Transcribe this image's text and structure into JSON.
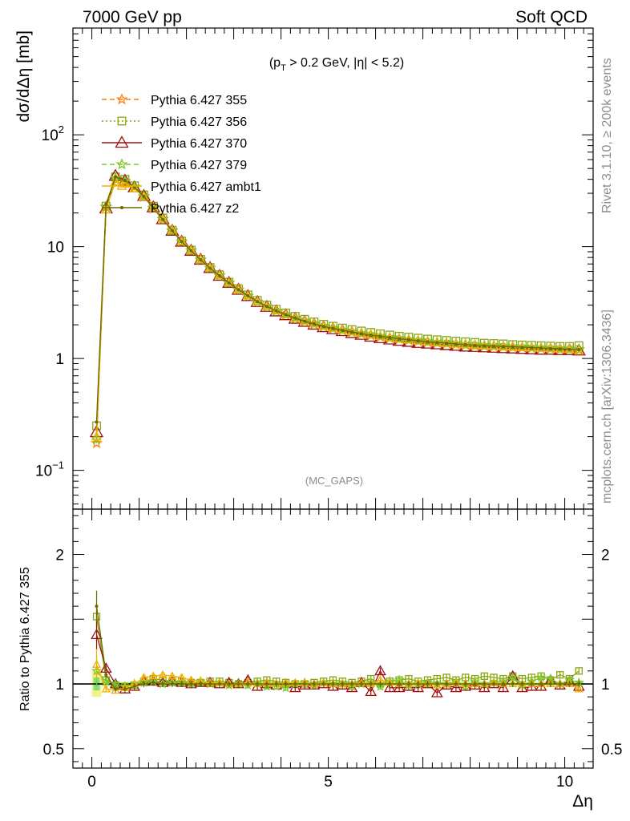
{
  "header": {
    "left": "7000 GeV pp",
    "right": "Soft QCD"
  },
  "side": {
    "rivet": "Rivet 3.1.10, ≥ 200k events",
    "mcplots": "mcplots.cern.ch [arXiv:1306.3436]"
  },
  "main": {
    "cut_label": "(p_T > 0.2 GeV, |η| < 5.2)",
    "watermark": "(MC_GAPS)",
    "ylabel": "dσ/dΔη [mb]"
  },
  "ratio": {
    "ylabel": "Ratio to Pythia 6.427 355"
  },
  "chart_data": [
    {
      "type": "line",
      "panel": "main",
      "xlabel": "Δη",
      "ylabel": "dσ/dΔη [mb]",
      "yscale": "log",
      "xlim": [
        -0.4,
        10.6
      ],
      "ylim": [
        0.045,
        900
      ],
      "y_ticks": [
        0.1,
        1,
        10,
        100
      ],
      "y_tick_labels": [
        "10^-1",
        "1",
        "10",
        "10^2"
      ],
      "x_ticks": [
        0,
        5,
        10
      ],
      "x_tick_labels": [
        "0",
        "5",
        "10"
      ],
      "legend_position": "top-left",
      "x": [
        0.1,
        0.3,
        0.5,
        0.7,
        0.9,
        1.1,
        1.3,
        1.5,
        1.7,
        1.9,
        2.1,
        2.3,
        2.5,
        2.7,
        2.9,
        3.1,
        3.3,
        3.5,
        3.7,
        3.9,
        4.1,
        4.3,
        4.5,
        4.7,
        4.9,
        5.1,
        5.3,
        5.5,
        5.7,
        5.9,
        6.1,
        6.3,
        6.5,
        6.7,
        6.9,
        7.1,
        7.3,
        7.5,
        7.7,
        7.9,
        8.1,
        8.3,
        8.5,
        8.7,
        8.9,
        9.1,
        9.3,
        9.5,
        9.7,
        9.9,
        10.1,
        10.3
      ],
      "series": [
        {
          "name": "Pythia 6.427 355",
          "color": "#ff7f0e",
          "style": "dashed",
          "marker": "star",
          "values": [
            0.175,
            22.5,
            40,
            38,
            34,
            28,
            22,
            17.5,
            13.8,
            11,
            9.2,
            7.6,
            6.4,
            5.5,
            4.7,
            4.1,
            3.6,
            3.2,
            2.9,
            2.65,
            2.45,
            2.28,
            2.15,
            2.03,
            1.93,
            1.85,
            1.78,
            1.72,
            1.66,
            1.61,
            1.56,
            1.52,
            1.49,
            1.46,
            1.43,
            1.4,
            1.38,
            1.36,
            1.34,
            1.32,
            1.3,
            1.29,
            1.28,
            1.27,
            1.26,
            1.25,
            1.24,
            1.23,
            1.22,
            1.21,
            1.21,
            1.2
          ]
        },
        {
          "name": "Pythia 6.427 356",
          "color": "#8aa60e",
          "style": "dotted",
          "marker": "open-square",
          "values": [
            0.25,
            23,
            42,
            40,
            35,
            29,
            23,
            18,
            14,
            11.2,
            9.3,
            7.7,
            6.5,
            5.6,
            4.8,
            4.2,
            3.7,
            3.3,
            3.0,
            2.75,
            2.55,
            2.38,
            2.24,
            2.12,
            2.02,
            1.94,
            1.87,
            1.81,
            1.76,
            1.71,
            1.66,
            1.62,
            1.58,
            1.55,
            1.52,
            1.49,
            1.47,
            1.45,
            1.43,
            1.41,
            1.39,
            1.37,
            1.36,
            1.35,
            1.33,
            1.32,
            1.31,
            1.3,
            1.29,
            1.28,
            1.28,
            1.3
          ]
        },
        {
          "name": "Pythia 6.427 370",
          "color": "#a01010",
          "style": "solid",
          "marker": "open-triangle",
          "values": [
            0.22,
            22,
            43,
            39,
            34,
            28.5,
            22.5,
            17.6,
            13.9,
            11.1,
            9.2,
            7.65,
            6.45,
            5.5,
            4.75,
            4.12,
            3.62,
            3.2,
            2.9,
            2.64,
            2.44,
            2.27,
            2.13,
            2.01,
            1.91,
            1.83,
            1.76,
            1.69,
            1.63,
            1.57,
            1.52,
            1.48,
            1.44,
            1.41,
            1.38,
            1.36,
            1.34,
            1.32,
            1.3,
            1.28,
            1.27,
            1.26,
            1.25,
            1.24,
            1.23,
            1.22,
            1.21,
            1.2,
            1.2,
            1.19,
            1.19,
            1.18
          ]
        },
        {
          "name": "Pythia 6.427 379",
          "color": "#7cc72a",
          "style": "dashed",
          "marker": "star",
          "values": [
            0.19,
            22.8,
            41,
            38.5,
            34.5,
            28.3,
            22.3,
            17.7,
            14,
            11.1,
            9.25,
            7.65,
            6.45,
            5.55,
            4.75,
            4.13,
            3.63,
            3.22,
            2.92,
            2.67,
            2.47,
            2.3,
            2.17,
            2.05,
            1.95,
            1.87,
            1.8,
            1.74,
            1.68,
            1.63,
            1.58,
            1.54,
            1.51,
            1.48,
            1.45,
            1.42,
            1.4,
            1.38,
            1.36,
            1.34,
            1.32,
            1.31,
            1.3,
            1.29,
            1.28,
            1.27,
            1.26,
            1.25,
            1.24,
            1.23,
            1.22,
            1.21
          ]
        },
        {
          "name": "Pythia 6.427 ambt1",
          "color": "#f0b000",
          "style": "solid",
          "marker": "open-triangle-small",
          "values": [
            0.2,
            21.5,
            38,
            36.5,
            33,
            28,
            22.5,
            17.8,
            14.1,
            11.2,
            9.3,
            7.7,
            6.5,
            5.55,
            4.78,
            4.15,
            3.65,
            3.24,
            2.93,
            2.68,
            2.48,
            2.31,
            2.17,
            2.05,
            1.95,
            1.87,
            1.8,
            1.74,
            1.68,
            1.63,
            1.58,
            1.54,
            1.5,
            1.47,
            1.44,
            1.41,
            1.39,
            1.37,
            1.35,
            1.33,
            1.31,
            1.3,
            1.29,
            1.28,
            1.27,
            1.26,
            1.25,
            1.24,
            1.23,
            1.22,
            1.21,
            1.17
          ]
        },
        {
          "name": "Pythia 6.427 z2",
          "color": "#6b6b00",
          "style": "solid",
          "marker": "dot",
          "values": [
            0.27,
            24,
            42,
            39,
            34,
            28,
            22.2,
            17.5,
            13.9,
            11.1,
            9.2,
            7.62,
            6.42,
            5.5,
            4.74,
            4.12,
            3.63,
            3.22,
            2.92,
            2.67,
            2.47,
            2.3,
            2.16,
            2.04,
            1.94,
            1.86,
            1.79,
            1.73,
            1.67,
            1.62,
            1.58,
            1.54,
            1.5,
            1.47,
            1.44,
            1.41,
            1.39,
            1.37,
            1.35,
            1.33,
            1.31,
            1.3,
            1.29,
            1.28,
            1.27,
            1.26,
            1.25,
            1.24,
            1.23,
            1.22,
            1.21,
            1.2
          ]
        }
      ]
    },
    {
      "type": "line",
      "panel": "ratio",
      "xlabel": "Δη",
      "ylabel": "Ratio to Pythia 6.427 355",
      "xlim": [
        -0.4,
        10.6
      ],
      "ylim": [
        0.35,
        2.35
      ],
      "y_ticks": [
        0.5,
        1,
        2
      ],
      "y_tick_labels": [
        "0.5",
        "1",
        "2"
      ],
      "x_ticks": [
        0,
        5,
        10
      ],
      "x_tick_labels": [
        "0",
        "5",
        "10"
      ],
      "reference_line": 1,
      "x": [
        0.1,
        0.3,
        0.5,
        0.7,
        0.9,
        1.1,
        1.3,
        1.5,
        1.7,
        1.9,
        2.1,
        2.3,
        2.5,
        2.7,
        2.9,
        3.1,
        3.3,
        3.5,
        3.7,
        3.9,
        4.1,
        4.3,
        4.5,
        4.7,
        4.9,
        5.1,
        5.3,
        5.5,
        5.7,
        5.9,
        6.1,
        6.3,
        6.5,
        6.7,
        6.9,
        7.1,
        7.3,
        7.5,
        7.7,
        7.9,
        8.1,
        8.3,
        8.5,
        8.7,
        8.9,
        9.1,
        9.3,
        9.5,
        9.7,
        9.9,
        10.1,
        10.3
      ],
      "band_355": {
        "low": [
          0.9,
          0.98,
          0.985,
          0.985,
          0.985,
          0.985,
          0.985,
          0.985,
          0.985,
          0.985,
          0.985,
          0.985,
          0.985,
          0.985,
          0.985,
          0.985,
          0.985,
          0.985,
          0.985,
          0.985,
          0.985,
          0.985,
          0.985,
          0.985,
          0.985,
          0.985,
          0.985,
          0.985,
          0.985,
          0.985,
          0.985,
          0.985,
          0.985,
          0.985,
          0.985,
          0.985,
          0.985,
          0.985,
          0.985,
          0.985,
          0.985,
          0.985,
          0.985,
          0.985,
          0.985,
          0.985,
          0.985,
          0.985,
          0.985,
          0.985,
          0.985,
          0.985
        ],
        "high": [
          1.1,
          1.02,
          1.015,
          1.015,
          1.015,
          1.015,
          1.015,
          1.015,
          1.015,
          1.015,
          1.015,
          1.015,
          1.015,
          1.015,
          1.015,
          1.015,
          1.015,
          1.015,
          1.015,
          1.015,
          1.015,
          1.015,
          1.015,
          1.015,
          1.015,
          1.015,
          1.015,
          1.015,
          1.015,
          1.015,
          1.015,
          1.015,
          1.015,
          1.015,
          1.015,
          1.015,
          1.015,
          1.015,
          1.015,
          1.015,
          1.015,
          1.015,
          1.015,
          1.015,
          1.015,
          1.015,
          1.015,
          1.015,
          1.015,
          1.015,
          1.015,
          1.015
        ]
      },
      "series": [
        {
          "name": "Pythia 6.427 356",
          "color": "#8aa60e",
          "marker": "open-square",
          "values": [
            1.52,
            1.03,
            0.99,
            0.98,
            0.99,
            1.02,
            1.04,
            1.03,
            1.02,
            1.02,
            1.01,
            1.01,
            1.02,
            1.02,
            1.01,
            1.0,
            1.01,
            1.02,
            1.03,
            1.02,
            1.01,
            1.0,
            1.0,
            1.01,
            1.02,
            1.03,
            1.02,
            1.01,
            1.02,
            1.04,
            1.0,
            1.02,
            1.03,
            1.04,
            1.02,
            1.03,
            1.04,
            1.05,
            1.03,
            1.05,
            1.04,
            1.06,
            1.05,
            1.04,
            1.06,
            1.04,
            1.05,
            1.06,
            1.03,
            1.07,
            1.04,
            1.1
          ]
        },
        {
          "name": "Pythia 6.427 370",
          "color": "#a01010",
          "marker": "open-triangle",
          "values": [
            1.38,
            1.12,
            1.0,
            0.96,
            0.98,
            1.02,
            1.02,
            1.01,
            1.02,
            1.01,
            1.0,
            1.01,
            1.01,
            1.0,
            1.01,
            1.0,
            1.03,
            0.98,
            1.0,
            0.99,
            1.0,
            0.97,
            0.99,
            0.99,
            1.0,
            0.98,
            0.99,
            0.97,
            1.01,
            0.94,
            1.1,
            0.97,
            0.97,
            0.98,
            0.97,
            1.0,
            0.93,
            0.99,
            0.97,
            0.98,
            0.99,
            0.97,
            1.0,
            0.97,
            1.06,
            0.97,
            0.98,
            0.98,
            1.03,
            0.99,
            1.02,
            0.98
          ]
        },
        {
          "name": "Pythia 6.427 379",
          "color": "#7cc72a",
          "marker": "star",
          "values": [
            1.1,
            1.02,
            1.0,
            0.98,
            1.0,
            1.01,
            1.02,
            1.0,
            1.01,
            1.01,
            1.0,
            1.02,
            1.0,
            1.01,
            0.99,
            1.0,
            0.99,
            1.01,
            0.98,
            0.98,
            0.97,
            1.0,
            1.01,
            0.99,
            1.01,
            1.0,
            1.0,
            0.98,
            1.0,
            1.01,
            0.98,
            1.02,
            1.03,
            0.99,
            1.0,
            1.01,
            1.0,
            1.0,
            1.02,
            0.98,
            1.02,
            1.0,
            1.01,
            1.02,
            1.05,
            0.99,
            1.02,
            1.05,
            1.04,
            1.0,
            1.03,
            1.01
          ]
        },
        {
          "name": "Pythia 6.427 ambt1",
          "color": "#f0b000",
          "marker": "open-triangle-small",
          "values": [
            1.15,
            0.96,
            0.95,
            0.97,
            1.0,
            1.05,
            1.06,
            1.07,
            1.06,
            1.05,
            1.03,
            1.02,
            1.01,
            1.01,
            1.0,
            1.0,
            1.01,
            1.0,
            1.01,
            1.0,
            1.01,
            1.01,
            1.01,
            1.0,
            1.01,
            1.0,
            1.0,
            1.0,
            1.01,
            1.0,
            1.03,
            1.01,
            1.0,
            1.0,
            1.01,
            1.0,
            0.99,
            1.0,
            1.01,
            1.0,
            1.0,
            1.0,
            1.01,
            1.0,
            1.0,
            1.0,
            1.0,
            1.0,
            1.0,
            1.0,
            1.0,
            0.96
          ]
        },
        {
          "name": "Pythia 6.427 z2",
          "color": "#6b6b00",
          "marker": "dot",
          "values": [
            1.6,
            1.07,
            0.96,
            0.96,
            0.98,
            1.0,
            1.01,
            1.0,
            1.0,
            1.0,
            1.0,
            1.0,
            1.0,
            1.0,
            1.0,
            1.0,
            1.0,
            1.0,
            1.0,
            1.0,
            1.0,
            1.0,
            1.0,
            1.0,
            1.0,
            1.0,
            1.0,
            1.0,
            1.0,
            1.0,
            1.0,
            1.0,
            1.0,
            1.0,
            1.0,
            1.0,
            1.0,
            1.0,
            1.0,
            1.0,
            1.0,
            1.0,
            1.0,
            1.0,
            1.0,
            1.0,
            1.0,
            1.0,
            1.0,
            1.0,
            1.0,
            1.0
          ]
        }
      ]
    }
  ]
}
